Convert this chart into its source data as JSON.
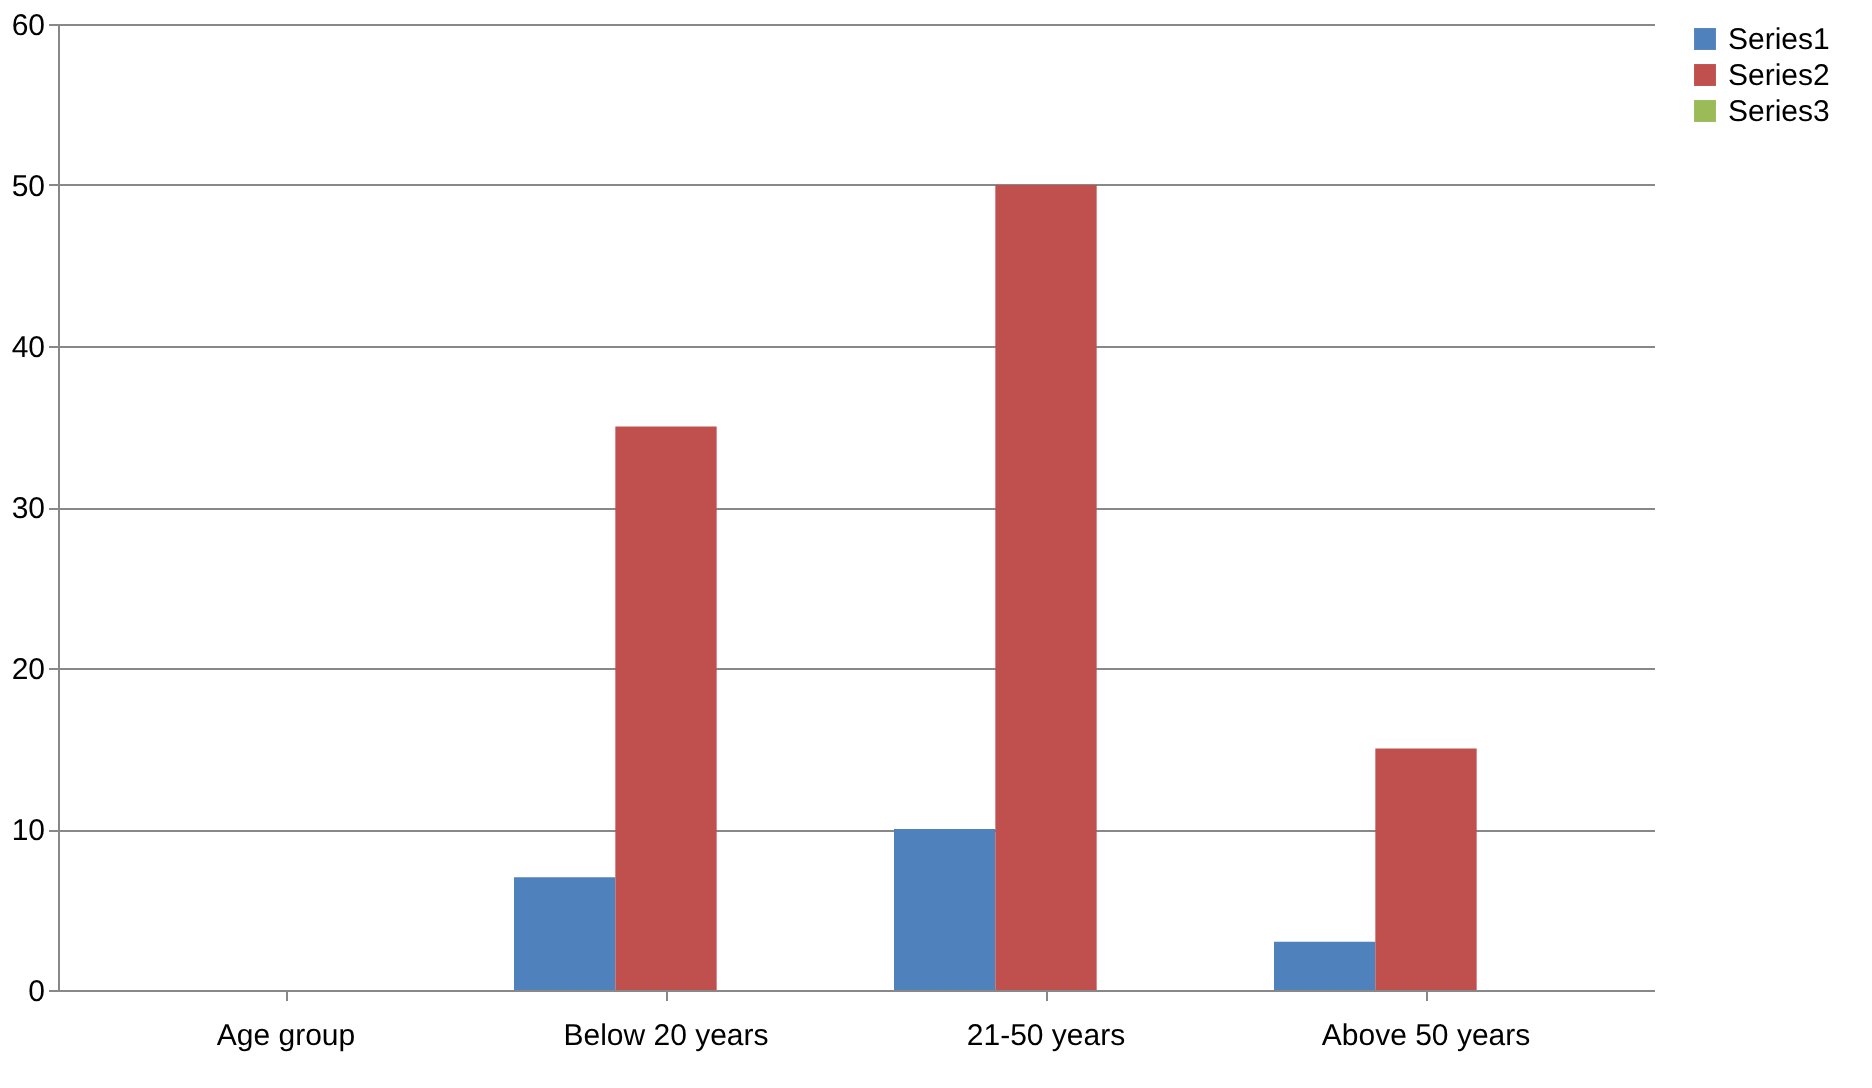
{
  "chart_data": {
    "type": "bar",
    "categories": [
      "Age group",
      "Below 20 years",
      "21-50 years",
      "Above 50 years"
    ],
    "series": [
      {
        "name": "Series1",
        "color": "#4f81bd",
        "values": [
          null,
          7,
          10,
          3
        ]
      },
      {
        "name": "Series2",
        "color": "#c0504d",
        "values": [
          null,
          35,
          50,
          15
        ]
      },
      {
        "name": "Series3",
        "color": "#9bbb59",
        "values": [
          null,
          null,
          null,
          null
        ]
      }
    ],
    "ylim": [
      0,
      60
    ],
    "yticks": [
      0,
      10,
      20,
      30,
      40,
      50,
      60
    ],
    "grid": "y",
    "legend": "right"
  }
}
